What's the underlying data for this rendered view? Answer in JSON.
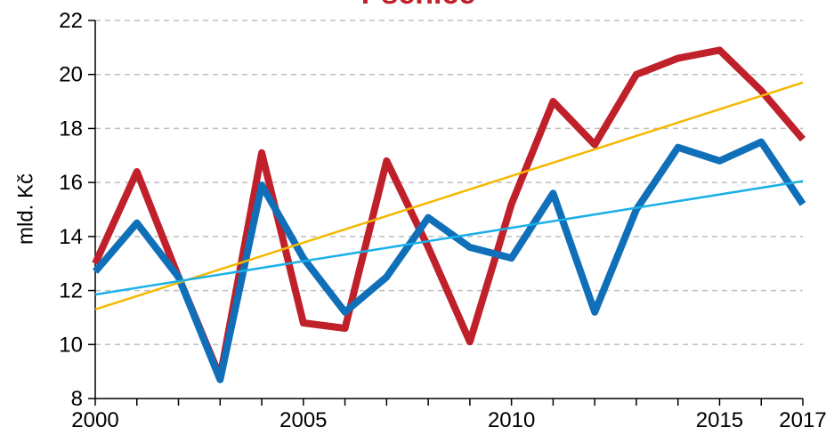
{
  "chart_data": {
    "type": "line",
    "title": "Pšenice",
    "title_color": "#c0202a",
    "ylabel": "mld. Kč",
    "x": [
      2000,
      2001,
      2002,
      2003,
      2004,
      2005,
      2006,
      2007,
      2008,
      2009,
      2010,
      2011,
      2012,
      2013,
      2014,
      2015,
      2016,
      2017
    ],
    "series": [
      {
        "color": "#c0202a",
        "values": [
          13.0,
          16.4,
          12.5,
          8.8,
          17.1,
          10.8,
          10.6,
          16.8,
          13.6,
          10.1,
          15.2,
          19.0,
          17.4,
          20.0,
          20.6,
          20.9,
          19.4,
          17.6
        ]
      },
      {
        "color": "#0f6fb8",
        "values": [
          12.7,
          14.5,
          12.5,
          8.7,
          15.9,
          13.2,
          11.2,
          12.5,
          14.7,
          13.6,
          13.2,
          15.6,
          11.2,
          15.0,
          17.3,
          16.8,
          17.5,
          15.2
        ]
      }
    ],
    "trendlines": [
      {
        "color": "#f5b800",
        "x": [
          2000,
          2017
        ],
        "values": [
          11.3,
          19.7
        ]
      },
      {
        "color": "#1ab0e8",
        "x": [
          2000,
          2017
        ],
        "values": [
          11.85,
          16.05
        ]
      }
    ],
    "xlim": [
      2000,
      2017
    ],
    "xticks": [
      2000,
      2005,
      2010,
      2015,
      2017
    ],
    "xminorticks": [
      2001,
      2002,
      2003,
      2004,
      2006,
      2007,
      2008,
      2009,
      2011,
      2012,
      2013,
      2014,
      2016
    ],
    "ylim": [
      8,
      22
    ],
    "yticks": [
      8,
      10,
      12,
      14,
      16,
      18,
      20,
      22
    ],
    "grid": true
  }
}
